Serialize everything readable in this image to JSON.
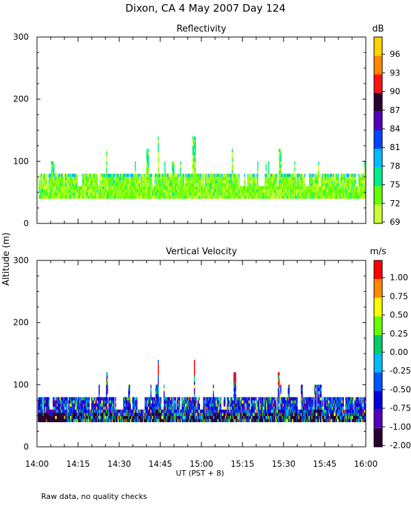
{
  "figure": {
    "title": "Dixon, CA  4 May 2007  Day 124",
    "shared_ylabel": "Altitude (m)",
    "xlabel": "UT  (PST + 8)",
    "footnote": "Raw data, no quality checks"
  },
  "chart_data": [
    {
      "type": "heatmap",
      "title": "Reflectivity",
      "ylabel": "Altitude (m)",
      "xlabel": "UT  (PST + 8)",
      "x_range": [
        "14:00",
        "16:00"
      ],
      "x_ticks": [
        "14:00",
        "14:15",
        "14:30",
        "14:45",
        "15:00",
        "15:15",
        "15:30",
        "15:45",
        "16:00"
      ],
      "ylim": [
        0,
        300
      ],
      "y_ticks": [
        0,
        100,
        200,
        300
      ],
      "colorbar": {
        "unit": "dB",
        "labels": [
          "69",
          "72",
          "75",
          "78",
          "81",
          "84",
          "87",
          "90",
          "93",
          "96"
        ],
        "colors": [
          "#ccff33",
          "#66ff00",
          "#00ee88",
          "#00bbff",
          "#0044ff",
          "#5500bb",
          "#2b0033",
          "#ff1111",
          "#ff8800",
          "#ffd200"
        ]
      },
      "echo_layer": {
        "base_m": 40,
        "typical_top_m": 80,
        "max_top_m": 140
      },
      "peak_heights": [
        {
          "time": "14:25",
          "top_m": 120
        },
        {
          "time": "14:40",
          "top_m": 120
        },
        {
          "time": "14:44",
          "top_m": 140
        },
        {
          "time": "14:57",
          "top_m": 140
        },
        {
          "time": "15:11",
          "top_m": 120
        },
        {
          "time": "15:28",
          "top_m": 120
        }
      ],
      "grid": false,
      "colorbar_position": "right"
    },
    {
      "type": "heatmap",
      "title": "Vertical Velocity",
      "ylabel": "Altitude (m)",
      "xlabel": "UT  (PST + 8)",
      "x_range": [
        "14:00",
        "16:00"
      ],
      "x_ticks": [
        "14:00",
        "14:15",
        "14:30",
        "14:45",
        "15:00",
        "15:15",
        "15:30",
        "15:45",
        "16:00"
      ],
      "ylim": [
        0,
        300
      ],
      "y_ticks": [
        0,
        100,
        200,
        300
      ],
      "colorbar": {
        "unit": "m/s",
        "labels": [
          "-2.00",
          "-1.00",
          "-0.75",
          "-0.50",
          "-0.25",
          "0.00",
          "0.25",
          "0.50",
          "0.75",
          "1.00"
        ],
        "colors": [
          "#2b0033",
          "#5500bb",
          "#0000dd",
          "#0055ff",
          "#00bbff",
          "#00cc66",
          "#66ff00",
          "#ffff00",
          "#ff8800",
          "#ff0000"
        ]
      },
      "echo_layer": {
        "base_m": 40,
        "typical_top_m": 80,
        "max_top_m": 140
      },
      "peak_heights": [
        {
          "time": "14:25",
          "top_m": 120
        },
        {
          "time": "14:44",
          "top_m": 140
        },
        {
          "time": "14:57",
          "top_m": 140
        },
        {
          "time": "15:12",
          "top_m": 120
        },
        {
          "time": "15:28",
          "top_m": 120
        }
      ],
      "grid": false,
      "colorbar_position": "right"
    }
  ]
}
